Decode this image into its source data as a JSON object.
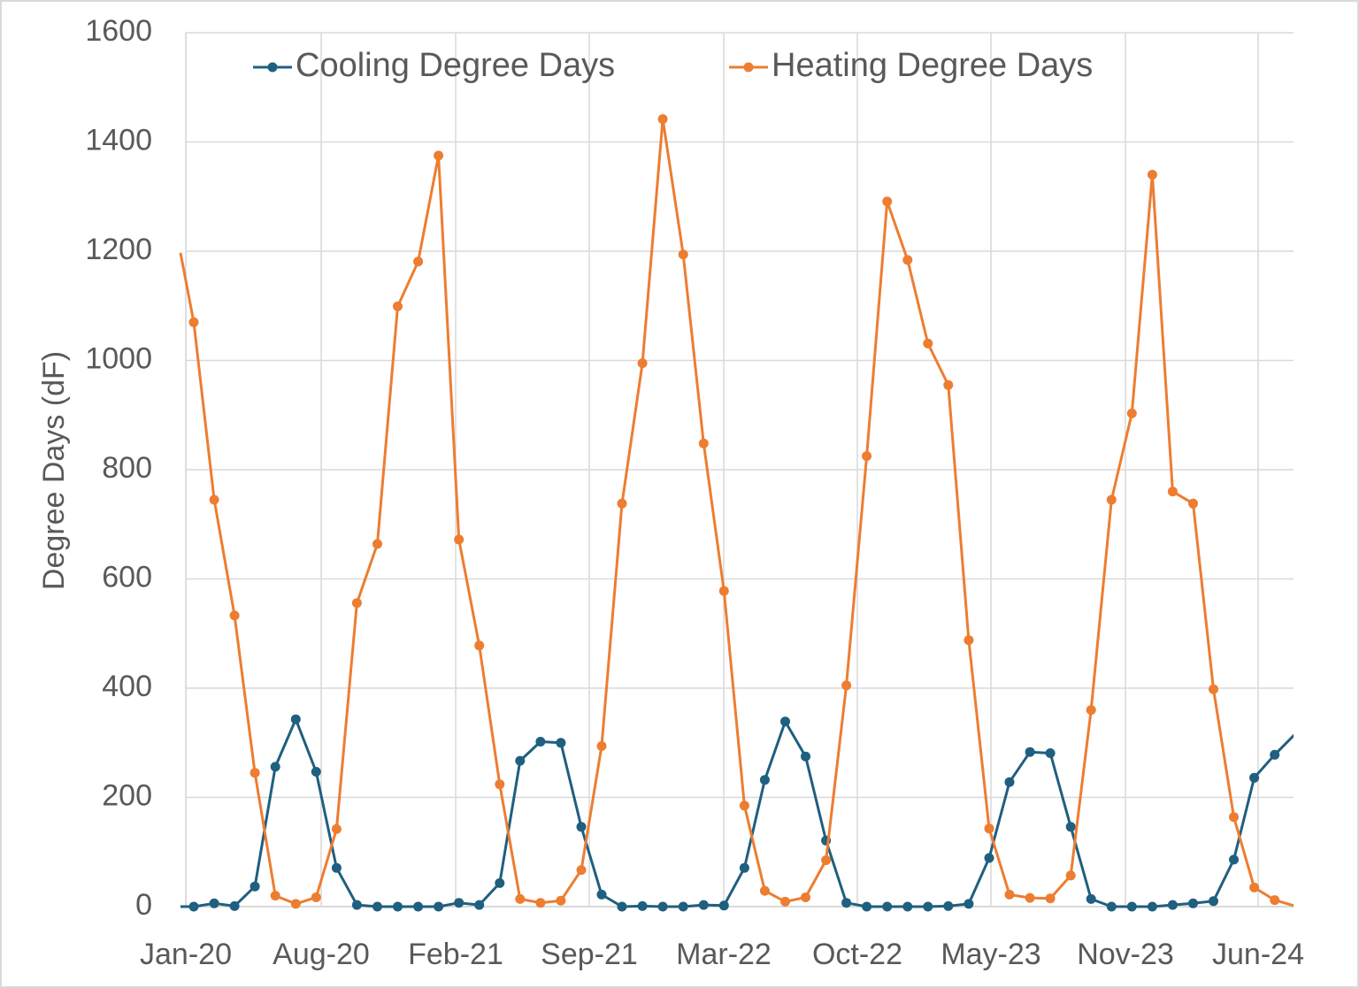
{
  "chart_data": {
    "type": "line",
    "title": "",
    "xlabel": "",
    "ylabel": "Degree Days (dF)",
    "ylim": [
      0,
      1600
    ],
    "yticks": [
      "0",
      "200",
      "400",
      "600",
      "800",
      "1000",
      "1200",
      "1400",
      "1600"
    ],
    "xticks": [
      "Jan-20",
      "Aug-20",
      "Feb-21",
      "Sep-21",
      "Mar-22",
      "Oct-22",
      "May-23",
      "Nov-23",
      "Jun-24"
    ],
    "grid": true,
    "legend_position": "top",
    "x": [
      "Jan-20",
      "Feb-20",
      "Mar-20",
      "Apr-20",
      "May-20",
      "Jun-20",
      "Jul-20",
      "Aug-20",
      "Sep-20",
      "Oct-20",
      "Nov-20",
      "Dec-20",
      "Jan-21",
      "Feb-21",
      "Mar-21",
      "Apr-21",
      "May-21",
      "Jun-21",
      "Jul-21",
      "Aug-21",
      "Sep-21",
      "Oct-21",
      "Nov-21",
      "Dec-21",
      "Jan-22",
      "Feb-22",
      "Mar-22",
      "Apr-22",
      "May-22",
      "Jun-22",
      "Jul-22",
      "Aug-22",
      "Sep-22",
      "Oct-22",
      "Nov-22",
      "Dec-22",
      "Jan-23",
      "Feb-23",
      "Mar-23",
      "Apr-23",
      "May-23",
      "Jun-23",
      "Jul-23",
      "Aug-23",
      "Sep-23",
      "Oct-23",
      "Nov-23",
      "Dec-23",
      "Jan-24",
      "Feb-24",
      "Mar-24",
      "Apr-24",
      "May-24",
      "Jun-24"
    ],
    "series": [
      {
        "name": "Cooling Degree Days",
        "color": "#1f5f7f",
        "values": [
          0,
          6,
          1,
          37,
          256,
          343,
          247,
          71,
          3,
          0,
          0,
          0,
          0,
          7,
          3,
          43,
          267,
          302,
          300,
          146,
          22,
          0,
          1,
          0,
          0,
          3,
          2,
          71,
          232,
          339,
          275,
          121,
          7,
          0,
          0,
          0,
          0,
          1,
          5,
          89,
          228,
          283,
          281,
          146,
          14,
          0,
          0,
          0,
          3,
          6,
          10,
          86,
          236,
          278
        ]
      },
      {
        "name": "Heating Degree Days",
        "color": "#ed7d31",
        "values": [
          1070,
          745,
          533,
          245,
          20,
          5,
          17,
          142,
          556,
          664,
          1099,
          1181,
          1375,
          672,
          478,
          224,
          14,
          7,
          11,
          67,
          294,
          738,
          995,
          1442,
          1194,
          848,
          578,
          185,
          29,
          9,
          17,
          85,
          405,
          825,
          1291,
          1184,
          1031,
          955,
          488,
          143,
          22,
          16,
          15,
          57,
          360,
          745,
          903,
          1340,
          760,
          738,
          398,
          164,
          35,
          12
        ]
      }
    ]
  }
}
